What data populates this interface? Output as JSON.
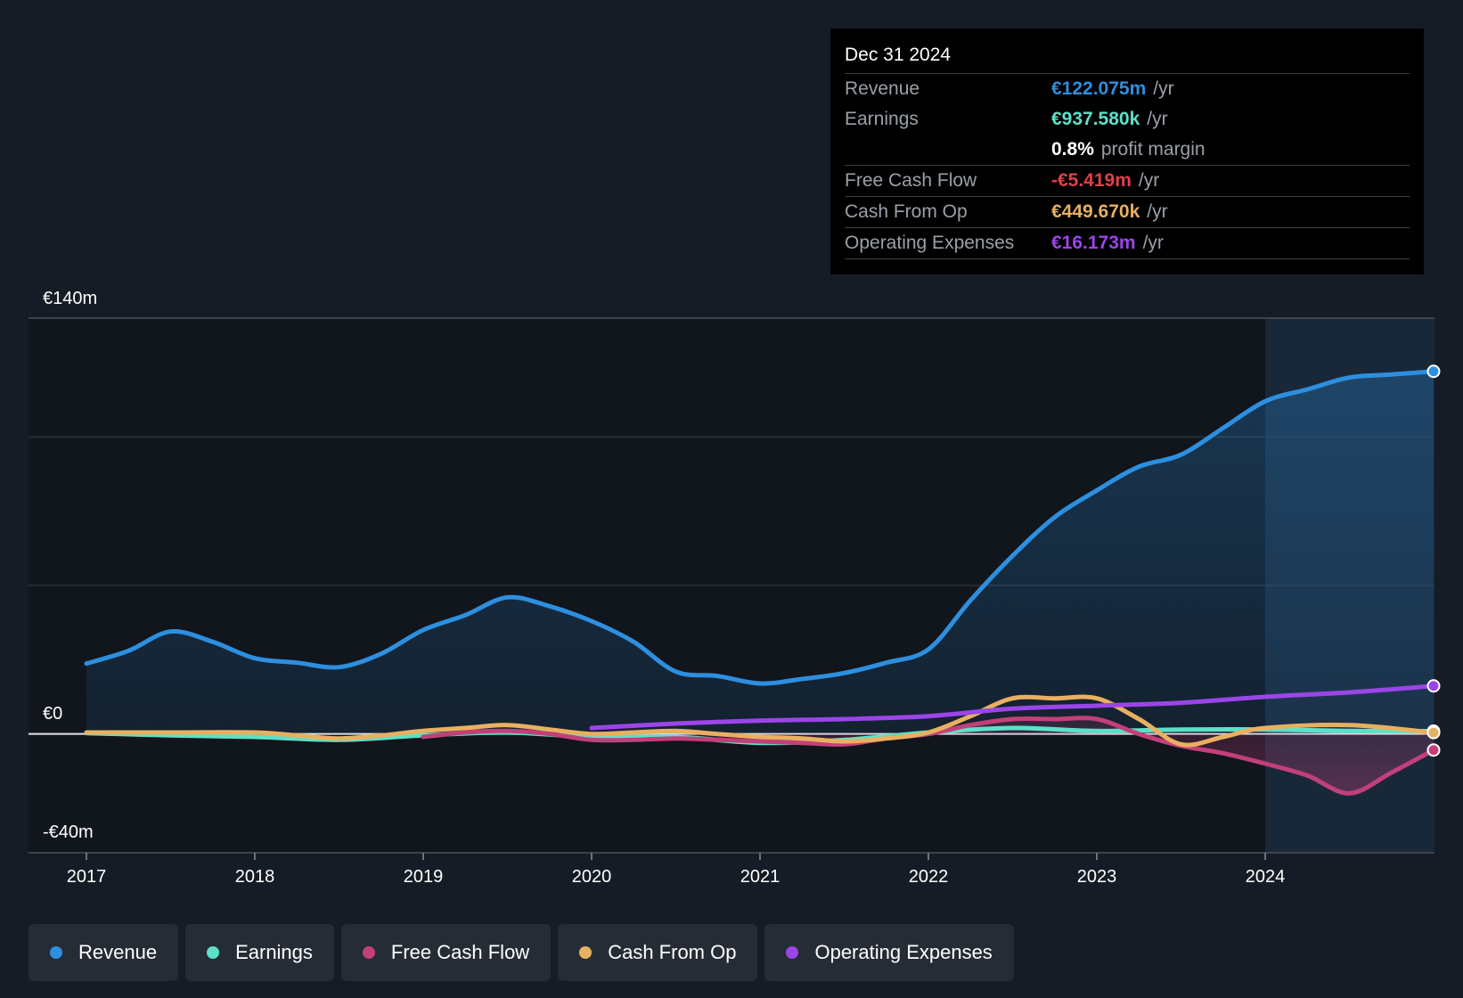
{
  "chart_data": {
    "type": "line",
    "y_axis": {
      "ylim": [
        -40,
        140
      ],
      "unit": "€m",
      "labels": [
        "€140m",
        "€0",
        "-€40m"
      ]
    },
    "x_axis": {
      "ticks": [
        "2017",
        "2018",
        "2019",
        "2020",
        "2021",
        "2022",
        "2023",
        "2024"
      ]
    },
    "highlight_start": 2024.0,
    "series": [
      {
        "name": "Revenue",
        "color": "#2d8fe0",
        "area": true,
        "points": [
          [
            2017.0,
            23.7
          ],
          [
            2017.25,
            28
          ],
          [
            2017.5,
            34.5
          ],
          [
            2017.75,
            31
          ],
          [
            2018.0,
            25.5
          ],
          [
            2018.25,
            24
          ],
          [
            2018.5,
            22.5
          ],
          [
            2018.75,
            27
          ],
          [
            2019.0,
            35
          ],
          [
            2019.25,
            40
          ],
          [
            2019.5,
            46
          ],
          [
            2019.75,
            43
          ],
          [
            2020.0,
            38
          ],
          [
            2020.25,
            31
          ],
          [
            2020.5,
            21
          ],
          [
            2020.75,
            19.5
          ],
          [
            2021.0,
            17
          ],
          [
            2021.25,
            18.5
          ],
          [
            2021.5,
            20.5
          ],
          [
            2021.75,
            24
          ],
          [
            2022.0,
            28.5
          ],
          [
            2022.25,
            45
          ],
          [
            2022.5,
            60
          ],
          [
            2022.75,
            73
          ],
          [
            2023.0,
            82
          ],
          [
            2023.25,
            90
          ],
          [
            2023.5,
            94
          ],
          [
            2023.75,
            103
          ],
          [
            2024.0,
            112
          ],
          [
            2024.25,
            116
          ],
          [
            2024.5,
            120
          ],
          [
            2024.75,
            121
          ],
          [
            2025.0,
            122.075
          ]
        ]
      },
      {
        "name": "Earnings",
        "color": "#5de0c8",
        "area": false,
        "points": [
          [
            2017.0,
            0.3
          ],
          [
            2017.5,
            -0.5
          ],
          [
            2018.0,
            -1
          ],
          [
            2018.5,
            -2
          ],
          [
            2019.0,
            -0.5
          ],
          [
            2019.5,
            0.5
          ],
          [
            2020.0,
            -1
          ],
          [
            2020.5,
            -1
          ],
          [
            2021.0,
            -3
          ],
          [
            2021.5,
            -2
          ],
          [
            2022.0,
            0.5
          ],
          [
            2022.5,
            2
          ],
          [
            2023.0,
            1
          ],
          [
            2023.5,
            1.5
          ],
          [
            2024.0,
            1.5
          ],
          [
            2024.5,
            1
          ],
          [
            2025.0,
            0.93758
          ]
        ]
      },
      {
        "name": "Free Cash Flow",
        "color": "#c2407a",
        "area": true,
        "points": [
          [
            2019.0,
            -1
          ],
          [
            2019.25,
            0.5
          ],
          [
            2019.5,
            1
          ],
          [
            2019.75,
            0
          ],
          [
            2020.0,
            -2
          ],
          [
            2020.25,
            -2
          ],
          [
            2020.5,
            -1.5
          ],
          [
            2020.75,
            -2
          ],
          [
            2021.0,
            -2.5
          ],
          [
            2021.25,
            -3
          ],
          [
            2021.5,
            -3.5
          ],
          [
            2021.75,
            -1.5
          ],
          [
            2022.0,
            0
          ],
          [
            2022.25,
            3
          ],
          [
            2022.5,
            5
          ],
          [
            2022.75,
            5
          ],
          [
            2023.0,
            5
          ],
          [
            2023.25,
            0
          ],
          [
            2023.5,
            -4
          ],
          [
            2023.75,
            -6.5
          ],
          [
            2024.0,
            -10
          ],
          [
            2024.25,
            -14
          ],
          [
            2024.5,
            -20
          ],
          [
            2024.75,
            -13
          ],
          [
            2025.0,
            -5.419
          ]
        ]
      },
      {
        "name": "Cash From Op",
        "color": "#e8b060",
        "area": false,
        "points": [
          [
            2017.0,
            0.5
          ],
          [
            2017.5,
            0.5
          ],
          [
            2018.0,
            0.5
          ],
          [
            2018.25,
            -0.5
          ],
          [
            2018.5,
            -1.5
          ],
          [
            2018.75,
            -0.5
          ],
          [
            2019.0,
            1
          ],
          [
            2019.25,
            2
          ],
          [
            2019.5,
            3
          ],
          [
            2019.75,
            1.5
          ],
          [
            2020.0,
            0
          ],
          [
            2020.25,
            0.5
          ],
          [
            2020.5,
            1
          ],
          [
            2020.75,
            0
          ],
          [
            2021.0,
            -1
          ],
          [
            2021.25,
            -1.5
          ],
          [
            2021.5,
            -2.5
          ],
          [
            2021.75,
            -1.5
          ],
          [
            2022.0,
            0.5
          ],
          [
            2022.25,
            6
          ],
          [
            2022.5,
            12
          ],
          [
            2022.75,
            12
          ],
          [
            2023.0,
            12
          ],
          [
            2023.25,
            5
          ],
          [
            2023.5,
            -3.5
          ],
          [
            2023.75,
            -1
          ],
          [
            2024.0,
            2
          ],
          [
            2024.5,
            3
          ],
          [
            2025.0,
            0.44967
          ]
        ]
      },
      {
        "name": "Operating Expenses",
        "color": "#9b45e8",
        "area": false,
        "points": [
          [
            2020.0,
            2
          ],
          [
            2020.5,
            3.5
          ],
          [
            2021.0,
            4.5
          ],
          [
            2021.5,
            5
          ],
          [
            2022.0,
            6
          ],
          [
            2022.5,
            8.5
          ],
          [
            2023.0,
            9.5
          ],
          [
            2023.5,
            10.5
          ],
          [
            2024.0,
            12.5
          ],
          [
            2024.5,
            14
          ],
          [
            2025.0,
            16.173
          ]
        ]
      }
    ]
  },
  "tooltip": {
    "date": "Dec 31 2024",
    "rows": [
      {
        "label": "Revenue",
        "value": "€122.075m",
        "unit": "/yr",
        "color": "#2d8fe0"
      },
      {
        "label": "Earnings",
        "value": "€937.580k",
        "unit": "/yr",
        "color": "#5de0c8"
      },
      {
        "label": "",
        "value": "0.8%",
        "unit": "profit margin",
        "color": "#ffffff"
      },
      {
        "label": "Free Cash Flow",
        "value": "-€5.419m",
        "unit": "/yr",
        "color": "#e0404a"
      },
      {
        "label": "Cash From Op",
        "value": "€449.670k",
        "unit": "/yr",
        "color": "#e8b060"
      },
      {
        "label": "Operating Expenses",
        "value": "€16.173m",
        "unit": "/yr",
        "color": "#9b45e8"
      }
    ]
  },
  "legend": [
    {
      "label": "Revenue",
      "color": "#2d8fe0"
    },
    {
      "label": "Earnings",
      "color": "#5de0c8"
    },
    {
      "label": "Free Cash Flow",
      "color": "#c2407a"
    },
    {
      "label": "Cash From Op",
      "color": "#e8b060"
    },
    {
      "label": "Operating Expenses",
      "color": "#9b45e8"
    }
  ]
}
